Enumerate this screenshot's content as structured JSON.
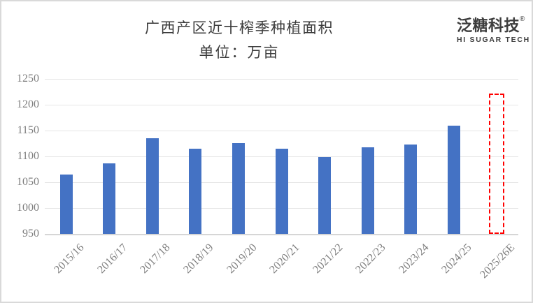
{
  "window": {
    "background": "#ffffff",
    "frame_border_color": "#d9d9d9"
  },
  "header": {
    "title": "广西产区近十榨季种植面积",
    "subtitle": "单位：万亩",
    "title_color": "#3b3b3b"
  },
  "logo": {
    "brand_cn": "泛糖科技",
    "registered_symbol": "®",
    "brand_en": "HI SUGAR TECH",
    "color": "#3d3d3d"
  },
  "chart_data": {
    "type": "bar",
    "title": "广西产区近十榨季种植面积",
    "subtitle_unit": "单位：万亩",
    "ylabel": "万亩",
    "categories": [
      "2015/16",
      "2016/17",
      "2017/18",
      "2018/19",
      "2019/20",
      "2020/21",
      "2021/22",
      "2022/23",
      "2023/24",
      "2024/25",
      "2025/26E"
    ],
    "values": [
      1065,
      1086,
      1135,
      1115,
      1126,
      1115,
      1099,
      1118,
      1123,
      1159,
      1222
    ],
    "estimated_index": 10,
    "estimated_category": "2025/26E",
    "ylim": [
      950,
      1250
    ],
    "yticks": [
      950,
      1000,
      1050,
      1100,
      1150,
      1200,
      1250
    ],
    "grid": true,
    "legend": false,
    "bar_color": "#4472C4",
    "estimated_outline_color": "#FF0000",
    "gridline_color": "#e6e6e6",
    "baseline_color": "#d6d6d6",
    "axis_label_color": "#7f7f7f"
  }
}
